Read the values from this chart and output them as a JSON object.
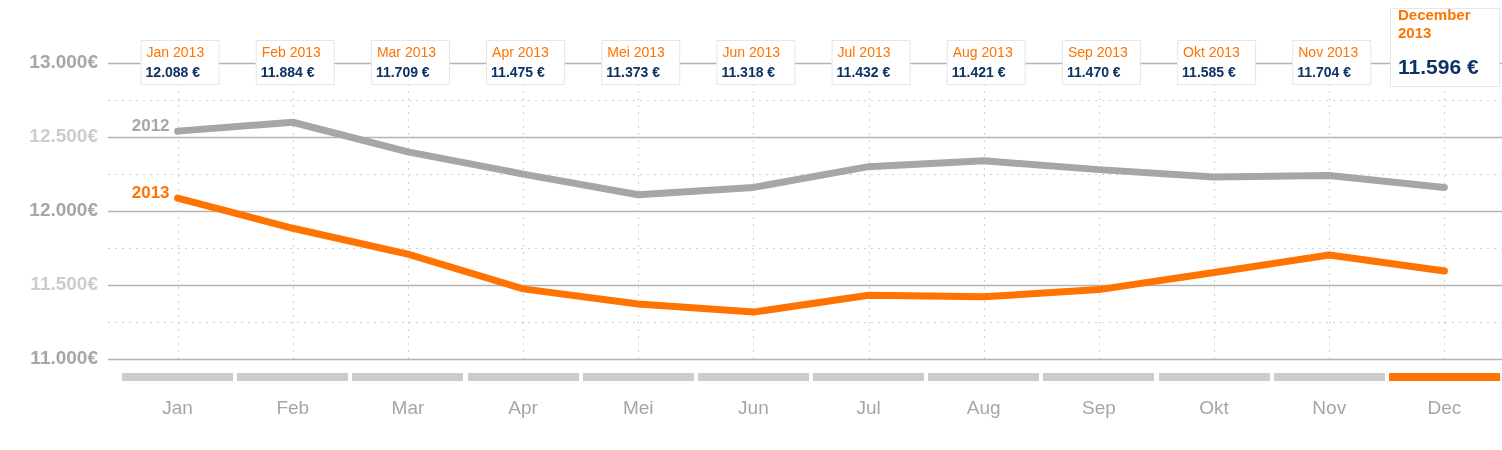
{
  "chart_data": {
    "type": "line",
    "categories": [
      "Jan",
      "Feb",
      "Mar",
      "Apr",
      "Mei",
      "Jun",
      "Jul",
      "Aug",
      "Sep",
      "Okt",
      "Nov",
      "Dec"
    ],
    "series": [
      {
        "name": "2012",
        "color": "#a6a6a6",
        "values": [
          12540,
          12600,
          12400,
          12250,
          12110,
          12160,
          12300,
          12340,
          12280,
          12230,
          12240,
          12160
        ]
      },
      {
        "name": "2013",
        "color": "#ff7300",
        "values": [
          12088,
          11884,
          11709,
          11475,
          11373,
          11318,
          11432,
          11421,
          11470,
          11585,
          11704,
          11596
        ]
      }
    ],
    "annotations": [
      "Jan 2013",
      "12.088 €",
      "Feb 2013",
      "11.884 €",
      "Mar 2013",
      "11.709 €",
      "Apr 2013",
      "11.475 €",
      "Mei 2013",
      "11.373 €",
      "Jun 2013",
      "11.318 €",
      "Jul 2013",
      "11.432 €",
      "Aug 2013",
      "11.421 €",
      "Sep 2013",
      "11.470 €",
      "Okt 2013",
      "11.585 €",
      "Nov 2013",
      "11.704 €",
      "December 2013",
      "11.596 €"
    ],
    "ylim": [
      11000,
      13000
    ],
    "yticks": [
      {
        "value": 11000,
        "label": "11.000€"
      },
      {
        "value": 11250,
        "label": null
      },
      {
        "value": 11500,
        "label": "11.500€"
      },
      {
        "value": 11750,
        "label": null
      },
      {
        "value": 12000,
        "label": "12.000€"
      },
      {
        "value": 12250,
        "label": null
      },
      {
        "value": 12500,
        "label": "12.500€"
      },
      {
        "value": 12750,
        "label": null
      },
      {
        "value": 13000,
        "label": "13.000€"
      }
    ],
    "grid": true,
    "legend": false
  }
}
